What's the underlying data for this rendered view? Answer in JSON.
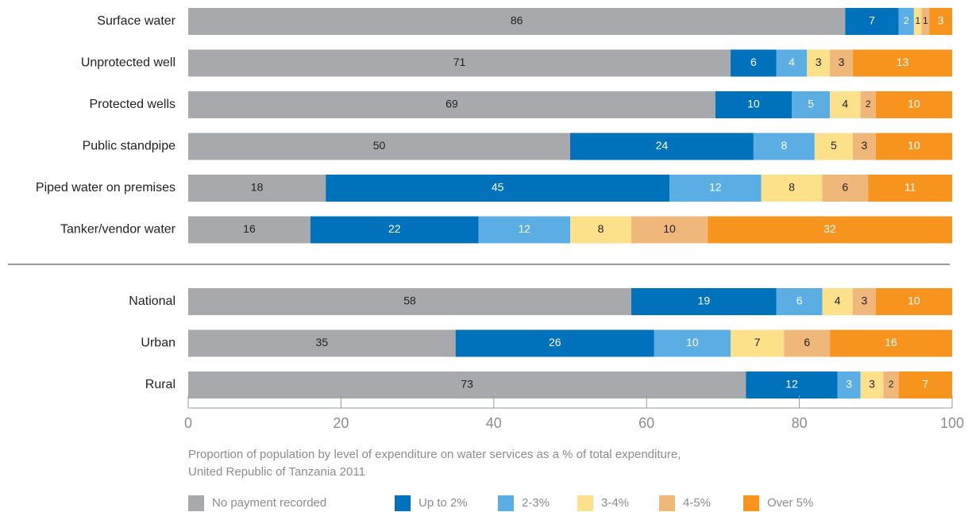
{
  "chart_data": {
    "type": "stacked-bar-horizontal",
    "categories": [
      "Surface water",
      "Unprotected well",
      "Protected wells",
      "Public standpipe",
      "Piped water on premises",
      "Tanker/vendor water",
      "National",
      "Urban",
      "Rural"
    ],
    "series": [
      {
        "name": "No payment recorded",
        "color": "#a7a9ac",
        "label_color": "#222222",
        "values": [
          86,
          71,
          69,
          50,
          18,
          16,
          58,
          35,
          73
        ]
      },
      {
        "name": "Up to 2%",
        "color": "#0072bc",
        "label_color": "#ffffff",
        "values": [
          7,
          6,
          10,
          24,
          45,
          22,
          19,
          26,
          12
        ]
      },
      {
        "name": "2-3%",
        "color": "#5aaee3",
        "label_color": "#ffffff",
        "values": [
          2,
          4,
          5,
          8,
          12,
          12,
          6,
          10,
          3
        ]
      },
      {
        "name": "3-4%",
        "color": "#fde08a",
        "label_color": "#222222",
        "values": [
          1,
          3,
          4,
          5,
          8,
          8,
          4,
          7,
          3
        ]
      },
      {
        "name": "4-5%",
        "color": "#f0b77a",
        "label_color": "#222222",
        "values": [
          1,
          3,
          2,
          3,
          6,
          10,
          3,
          6,
          2
        ]
      },
      {
        "name": "Over 5%",
        "color": "#f7941d",
        "label_color": "#ffffff",
        "values": [
          3,
          13,
          10,
          10,
          11,
          32,
          10,
          16,
          7
        ]
      }
    ],
    "xlim": [
      0,
      100
    ],
    "xticks": [
      0,
      20,
      40,
      60,
      80,
      100
    ],
    "xlabel": [
      "Proportion of population by level of expenditure on water services as a % of total expenditure,",
      "United Republic of Tanzania 2011"
    ]
  }
}
